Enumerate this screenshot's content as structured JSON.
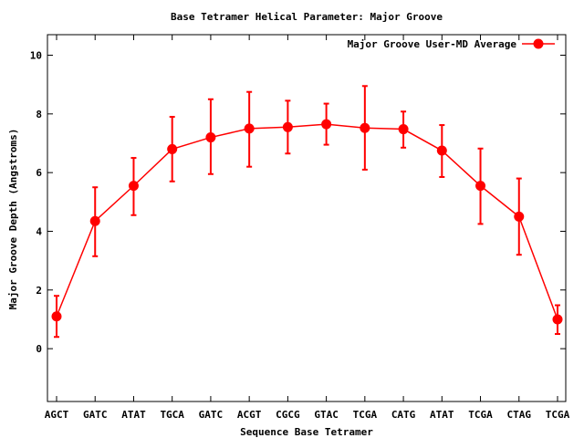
{
  "chart_data": {
    "type": "line",
    "title": "Base Tetramer Helical Parameter: Major Groove",
    "xlabel": "Sequence Base Tetramer",
    "ylabel": "Major Groove Depth (Angstroms)",
    "categories": [
      "AGCT",
      "GATC",
      "ATAT",
      "TGCA",
      "GATC",
      "ACGT",
      "CGCG",
      "GTAC",
      "TCGA",
      "CATG",
      "ATAT",
      "TCGA",
      "CTAG",
      "TCGA"
    ],
    "ylim": [
      -1.8,
      10.7
    ],
    "yticks": [
      0,
      2,
      4,
      6,
      8,
      10
    ],
    "grid": false,
    "legend_position": "top-right",
    "series": [
      {
        "name": "Major Groove User-MD Average",
        "color": "#ff0000",
        "values": [
          1.1,
          4.35,
          5.55,
          6.8,
          7.2,
          7.5,
          7.55,
          7.65,
          7.52,
          7.48,
          6.75,
          5.55,
          4.5,
          1.0
        ],
        "err_low": [
          0.4,
          3.15,
          4.55,
          5.7,
          5.95,
          6.2,
          6.65,
          6.95,
          6.1,
          6.85,
          5.85,
          4.25,
          3.2,
          0.5
        ],
        "err_high": [
          1.8,
          5.5,
          6.5,
          7.9,
          8.5,
          8.75,
          8.45,
          8.35,
          8.95,
          8.08,
          7.62,
          6.82,
          5.8,
          1.48
        ]
      }
    ]
  }
}
